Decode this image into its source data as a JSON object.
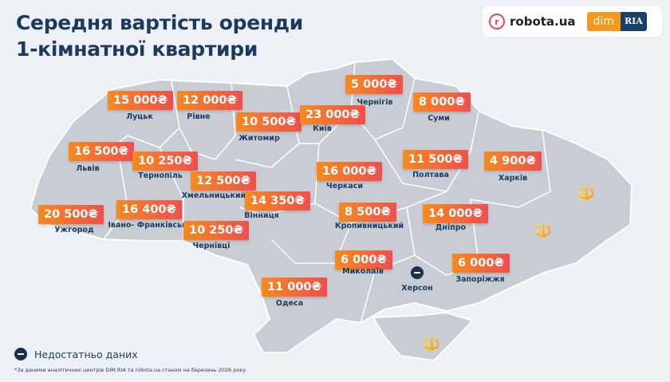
{
  "title_line1": "Середня вартість оренди",
  "title_line2": "1-кімнатної квартири",
  "logos": {
    "robota_icon": "r",
    "robota": "robota.ua",
    "dim": "dim",
    "ria": "RIA"
  },
  "cities": [
    {
      "name": "Луцьк",
      "price": "15 000₴"
    },
    {
      "name": "Рівне",
      "price": "12 000₴"
    },
    {
      "name": "Житомир",
      "price": "10 500₴"
    },
    {
      "name": "Київ",
      "price": "23 000₴"
    },
    {
      "name": "Чернігів",
      "price": "5 000₴"
    },
    {
      "name": "Суми",
      "price": "8 000₴"
    },
    {
      "name": "Львів",
      "price": "16 500₴"
    },
    {
      "name": "Тернопіль",
      "price": "10 250₴"
    },
    {
      "name": "Хмельницький",
      "price": "12 500₴"
    },
    {
      "name": "Вінниця",
      "price": "14 350₴"
    },
    {
      "name": "Черкаси",
      "price": "16 000₴"
    },
    {
      "name": "Полтава",
      "price": "11 500₴"
    },
    {
      "name": "Харків",
      "price": "4 900₴"
    },
    {
      "name": "Ужгород",
      "price": "20 500₴"
    },
    {
      "name": "Івано- Франківськ",
      "price": "16 400₴"
    },
    {
      "name": "Чернівці",
      "price": "10 250₴"
    },
    {
      "name": "Кропивницький",
      "price": "8 500₴"
    },
    {
      "name": "Дніпро",
      "price": "14 000₴"
    },
    {
      "name": "Миколаїв",
      "price": "6 000₴"
    },
    {
      "name": "Запоріжжя",
      "price": "6 000₴"
    },
    {
      "name": "Одеса",
      "price": "11 000₴"
    }
  ],
  "no_data_city": "Херсон",
  "colors": {
    "title": "#1c3a5e",
    "price_from": "#f58a1f",
    "price_to": "#ef4f4f",
    "map": "#c9cdd3",
    "background": "#edf1f6"
  },
  "legend": {
    "icon": "minus-circle-icon",
    "label": "Недостатньо даних"
  },
  "footnote": "*За даними аналітичних центрів DIM.RIA та robota.ua станом на березень 2026 року"
}
